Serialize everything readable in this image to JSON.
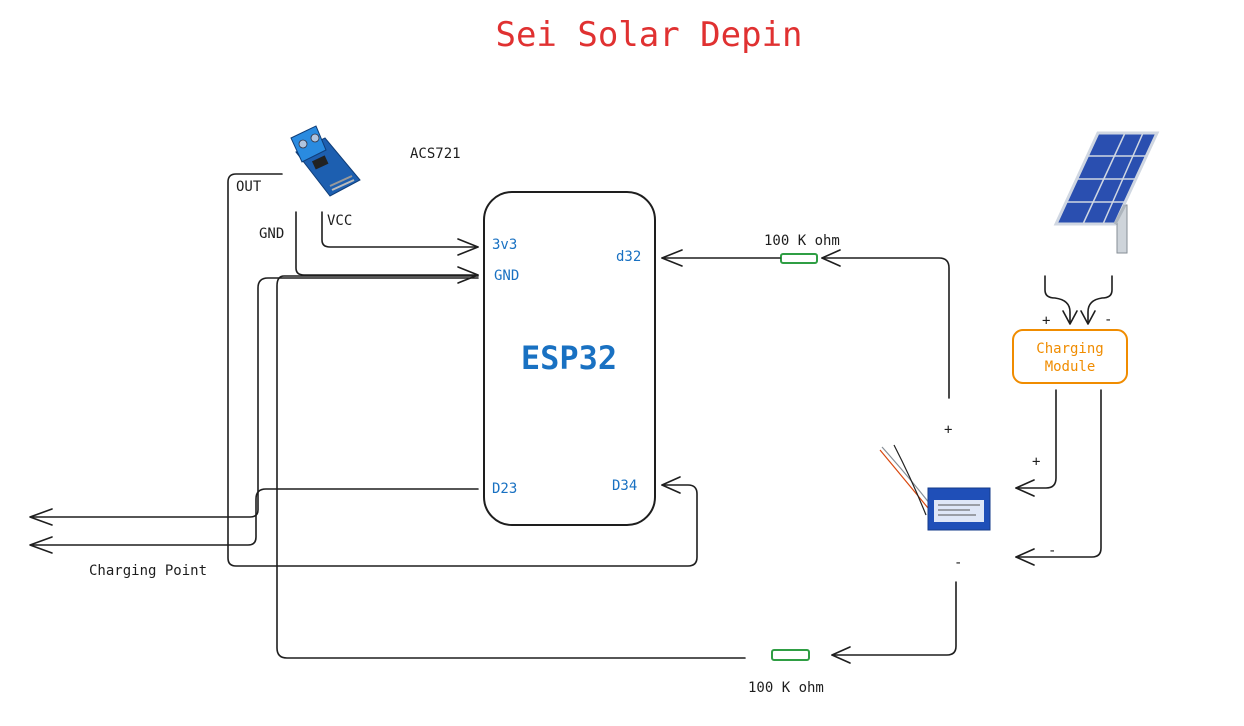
{
  "title": "Sei Solar Depin",
  "sensor": {
    "name": "ACS721",
    "pins": {
      "out": "OUT",
      "gnd": "GND",
      "vcc": "VCC"
    }
  },
  "esp32": {
    "label": "ESP32",
    "pins": {
      "v3": "3v3",
      "gnd": "GND",
      "d32": "d32",
      "d23": "D23",
      "d34": "D34"
    }
  },
  "resistor_top": {
    "label": "100 K ohm"
  },
  "resistor_bottom": {
    "label": "100 K ohm"
  },
  "charging_point": {
    "label": "Charging Point"
  },
  "charging_module": {
    "label_line1": "Charging",
    "label_line2": "Module"
  },
  "polarity": {
    "module_in_plus": "+",
    "module_in_minus": "-",
    "module_out_plus": "+",
    "module_out_minus": "-",
    "battery_plus": "+",
    "battery_minus": "-"
  },
  "colors": {
    "title": "#e03131",
    "esp32_text": "#1971c2",
    "module": "#f08c00",
    "resistor": "#2f9e44",
    "wire": "#1e1e1e"
  }
}
